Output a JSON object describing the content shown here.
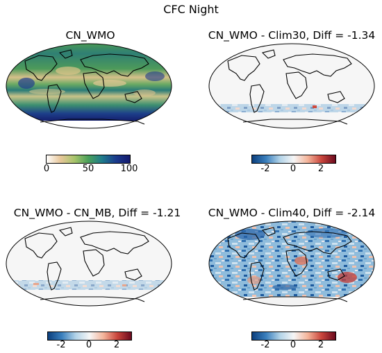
{
  "figure_title": "CFC Night",
  "panels": [
    {
      "title": "CN_WMO",
      "colormap": "gist_earth_r",
      "colorbar": {
        "ticks": [
          "0",
          "50",
          "100"
        ],
        "vmin": 0,
        "vmax": 100,
        "colors": [
          "#ffffff",
          "#e8c79a",
          "#a8c46b",
          "#4aa05a",
          "#1f7b8c",
          "#1a3a8c",
          "#141a6e"
        ]
      }
    },
    {
      "title": "CN_WMO - Clim30, Diff = -1.34",
      "colormap": "RdBu_r",
      "colorbar": {
        "ticks": [
          "-2",
          "0",
          "2"
        ],
        "vmin": -3,
        "vmax": 3,
        "colors": [
          "#0c3f7d",
          "#3a7fbd",
          "#b2d3e8",
          "#f6f6f6",
          "#f4b49a",
          "#c9453c",
          "#6b0a1e"
        ]
      }
    },
    {
      "title": "CN_WMO - CN_MB, Diff = -1.21",
      "colormap": "RdBu_r",
      "colorbar": {
        "ticks": [
          "-2",
          "0",
          "2"
        ],
        "vmin": -3,
        "vmax": 3,
        "colors": [
          "#0c3f7d",
          "#3a7fbd",
          "#b2d3e8",
          "#f6f6f6",
          "#f4b49a",
          "#c9453c",
          "#6b0a1e"
        ]
      }
    },
    {
      "title": "CN_WMO - Clim40, Diff = -2.14",
      "colormap": "RdBu_r",
      "colorbar": {
        "ticks": [
          "-2",
          "0",
          "2"
        ],
        "vmin": -3,
        "vmax": 3,
        "colors": [
          "#0c3f7d",
          "#3a7fbd",
          "#b2d3e8",
          "#f6f6f6",
          "#f4b49a",
          "#c9453c",
          "#6b0a1e"
        ]
      }
    }
  ]
}
